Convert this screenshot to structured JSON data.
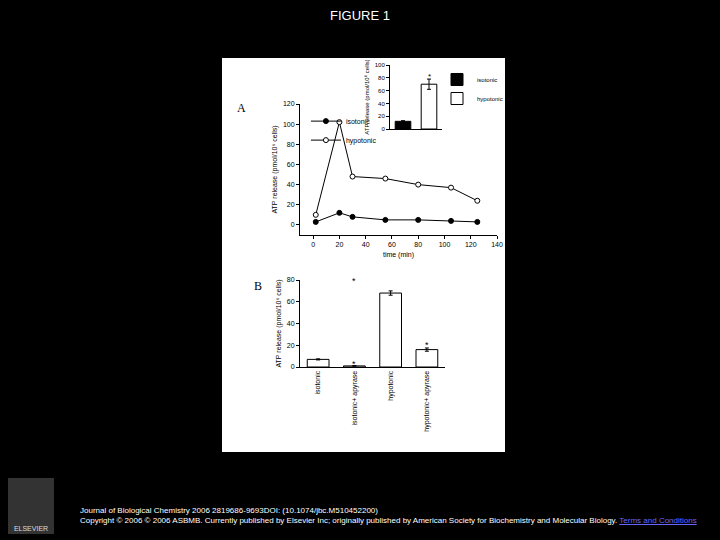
{
  "title": "FIGURE 1",
  "footer": {
    "citation": "Journal of Biological Chemistry 2006 2819686-9693DOI: (10.1074/jbc.M510452200)",
    "copyright": "Copyright © 2006 © 2006 ASBMB. Currently published by Elsevier Inc; originally published by American Society for Biochemistry and Molecular Biology.",
    "link": "Terms and Conditions",
    "logo": "ELSEVIER"
  },
  "chart_data": [
    {
      "type": "line",
      "title": "A",
      "xlabel": "time (min)",
      "ylabel": "ATP release (pmol/10⁶ cells)",
      "x": [
        2,
        20,
        30,
        55,
        80,
        105,
        125
      ],
      "series": [
        {
          "name": "isotonic",
          "color": "#000000",
          "marker": "filled circle",
          "values": [
            3,
            12,
            8,
            5,
            5,
            4,
            3
          ]
        },
        {
          "name": "hypotonic",
          "color": "#000000",
          "marker": "open circle",
          "values": [
            10,
            102,
            48,
            46,
            40,
            37,
            24
          ]
        }
      ],
      "xlim": [
        -10,
        140
      ],
      "xticks": [
        0,
        20,
        40,
        60,
        80,
        100,
        120,
        140
      ],
      "ylim": [
        -10,
        120
      ],
      "yticks": [
        0,
        20,
        40,
        60,
        80,
        100,
        120
      ],
      "grid": false,
      "legend": "upper left"
    },
    {
      "type": "bar",
      "ylabel": "ATP release (pmol/10⁶ cells)",
      "categories": [
        null,
        null
      ],
      "series": [
        {
          "name": "isotonic",
          "color": "#000000",
          "values": [
            12,
            null
          ],
          "errors": [
            1,
            null
          ]
        },
        {
          "name": "hypotonic",
          "color": "#ffffff",
          "values": [
            null,
            70
          ],
          "errors": [
            null,
            8
          ]
        }
      ],
      "ylim": [
        0,
        100
      ],
      "yticks": [
        0,
        20,
        40,
        60,
        80,
        100
      ],
      "annotations": [
        {
          "text": "*",
          "x": 1,
          "y": 82
        }
      ],
      "grid": false,
      "legend": "upper right",
      "tick_labels": "y"
    },
    {
      "type": "bar",
      "title": "B",
      "ylabel": "ATP release (pmol/10⁶ cells)",
      "categories": [
        "isotonic",
        "isotonic+ apyrase",
        "hypotonic",
        "hypotonic+ apyrase"
      ],
      "values": [
        7,
        1,
        68,
        16
      ],
      "errors": [
        0.5,
        0.3,
        2,
        1.5
      ],
      "color": "#ffffff",
      "ylim": [
        0,
        80
      ],
      "yticks": [
        0,
        20,
        40,
        60,
        80
      ],
      "annotations": [
        {
          "text": "*",
          "x": 1,
          "y": 79
        },
        {
          "text": "*",
          "x": 1,
          "y": 3
        },
        {
          "text": "*",
          "x": 3,
          "y": 20
        }
      ],
      "grid": false
    }
  ]
}
